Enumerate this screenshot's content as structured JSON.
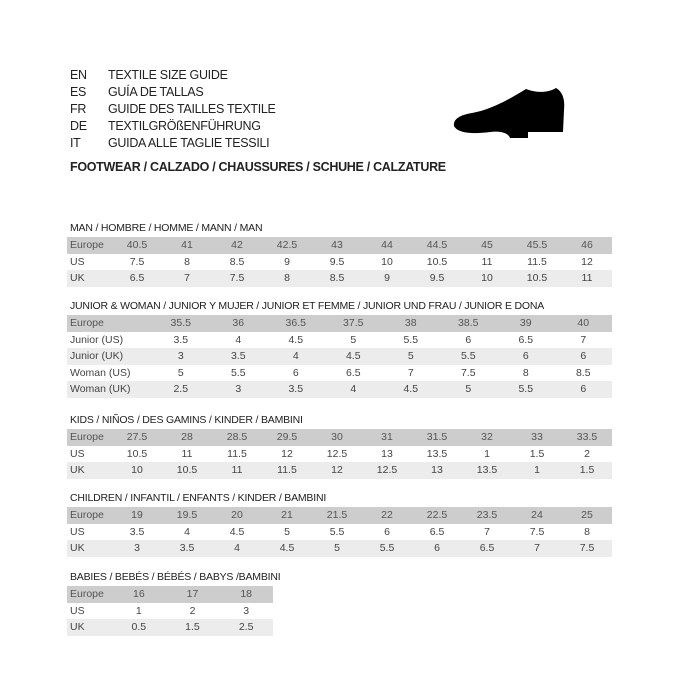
{
  "header": {
    "lines": [
      {
        "code": "EN",
        "text": "TEXTILE SIZE GUIDE"
      },
      {
        "code": "ES",
        "text": "GUÍA DE TALLAS"
      },
      {
        "code": "FR",
        "text": "GUIDE DES TAILLES TEXTILE"
      },
      {
        "code": "DE",
        "text": "TEXTILGRÖßENFÜHRUNG"
      },
      {
        "code": "IT",
        "text": "GUIDA ALLE TAGLIE TESSILI"
      }
    ],
    "footwear": "FOOTWEAR / CALZADO / CHAUSSURES / SCHUHE / CALZATURE",
    "icon": "shoe-icon"
  },
  "colors": {
    "header_row": "#cdcdcd",
    "alt_row": "#ececec"
  },
  "sections": [
    {
      "title": "MAN / HOMBRE / HOMME / MANN / MAN",
      "rows": [
        {
          "label": "Europe",
          "values": [
            "40.5",
            "41",
            "42",
            "42.5",
            "43",
            "44",
            "44.5",
            "45",
            "45.5",
            "46"
          ]
        },
        {
          "label": "US",
          "values": [
            "7.5",
            "8",
            "8.5",
            "9",
            "9.5",
            "10",
            "10.5",
            "11",
            "11.5",
            "12"
          ]
        },
        {
          "label": "UK",
          "values": [
            "6.5",
            "7",
            "7.5",
            "8",
            "8.5",
            "9",
            "9.5",
            "10",
            "10.5",
            "11"
          ]
        }
      ]
    },
    {
      "title": "JUNIOR & WOMAN / JUNIOR Y MUJER / JUNIOR ET FEMME / JUNIOR UND FRAU / JUNIOR E DONA",
      "rows": [
        {
          "label": "Europe",
          "values": [
            "35.5",
            "36",
            "36.5",
            "37.5",
            "38",
            "38.5",
            "39",
            "40"
          ]
        },
        {
          "label": "Junior (US)",
          "values": [
            "3.5",
            "4",
            "4.5",
            "5",
            "5.5",
            "6",
            "6.5",
            "7"
          ]
        },
        {
          "label": "Junior (UK)",
          "values": [
            "3",
            "3.5",
            "4",
            "4.5",
            "5",
            "5.5",
            "6",
            "6"
          ]
        },
        {
          "label": "Woman (US)",
          "values": [
            "5",
            "5.5",
            "6",
            "6.5",
            "7",
            "7.5",
            "8",
            "8.5"
          ]
        },
        {
          "label": "Woman (UK)",
          "values": [
            "2.5",
            "3",
            "3.5",
            "4",
            "4.5",
            "5",
            "5.5",
            "6"
          ]
        }
      ]
    },
    {
      "title": "KIDS / NIÑOS / DES GAMINS / KINDER / BAMBINI",
      "rows": [
        {
          "label": "Europe",
          "values": [
            "27.5",
            "28",
            "28.5",
            "29.5",
            "30",
            "31",
            "31.5",
            "32",
            "33",
            "33.5"
          ]
        },
        {
          "label": "US",
          "values": [
            "10.5",
            "11",
            "11.5",
            "12",
            "12.5",
            "13",
            "13.5",
            "1",
            "1.5",
            "2"
          ]
        },
        {
          "label": "UK",
          "values": [
            "10",
            "10.5",
            "11",
            "11.5",
            "12",
            "12.5",
            "13",
            "13.5",
            "1",
            "1.5"
          ]
        }
      ]
    },
    {
      "title": "CHILDREN / INFANTIL / ENFANTS / KINDER / BAMBINI",
      "rows": [
        {
          "label": "Europe",
          "values": [
            "19",
            "19.5",
            "20",
            "21",
            "21.5",
            "22",
            "22.5",
            "23.5",
            "24",
            "25"
          ]
        },
        {
          "label": "US",
          "values": [
            "3.5",
            "4",
            "4.5",
            "5",
            "5.5",
            "6",
            "6.5",
            "7",
            "7.5",
            "8"
          ]
        },
        {
          "label": "UK",
          "values": [
            "3",
            "3.5",
            "4",
            "4.5",
            "5",
            "5.5",
            "6",
            "6.5",
            "7",
            "7.5"
          ]
        }
      ]
    },
    {
      "title": "BABIES  / BEBÉS / BÉBÉS / BABYS /BAMBINI",
      "rows": [
        {
          "label": "Europe",
          "values": [
            "16",
            "17",
            "18"
          ]
        },
        {
          "label": "US",
          "values": [
            "1",
            "2",
            "3"
          ]
        },
        {
          "label": "UK",
          "values": [
            "0.5",
            "1.5",
            "2.5"
          ]
        }
      ]
    }
  ]
}
